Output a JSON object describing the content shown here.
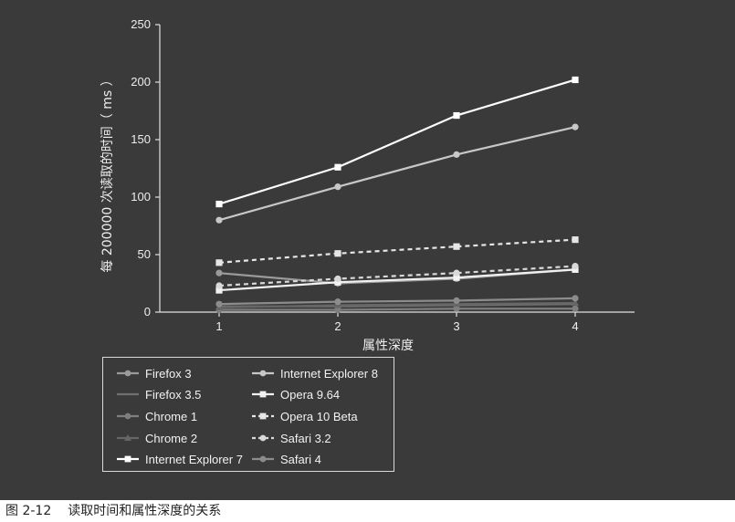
{
  "caption": {
    "number": "图 2-12",
    "text": "读取时间和属性深度的关系"
  },
  "chart_data": {
    "type": "line",
    "xlabel": "属性深度",
    "ylabel": "每 200000 次读取的时间（ ms ）",
    "x": [
      1,
      2,
      3,
      4
    ],
    "xlim": [
      0.5,
      4.5
    ],
    "ylim": [
      0,
      250
    ],
    "yticks": [
      0,
      50,
      100,
      150,
      200,
      250
    ],
    "grid": false,
    "legend_position": "bottom-left",
    "series": [
      {
        "name": "Firefox 3",
        "values": [
          34,
          25,
          29,
          37
        ],
        "color": "#9a9a9a",
        "dash": false,
        "marker": "circle"
      },
      {
        "name": "Firefox 3.5",
        "values": [
          5,
          5,
          6,
          7
        ],
        "color": "#707070",
        "dash": false,
        "marker": "none"
      },
      {
        "name": "Chrome 1",
        "values": [
          2,
          2,
          3,
          3
        ],
        "color": "#7e7e7e",
        "dash": false,
        "marker": "circle"
      },
      {
        "name": "Chrome 2",
        "values": [
          4,
          6,
          7,
          8
        ],
        "color": "#666666",
        "dash": false,
        "marker": "triangle"
      },
      {
        "name": "Internet Explorer 7",
        "values": [
          94,
          126,
          171,
          202
        ],
        "color": "#ffffff",
        "dash": false,
        "marker": "square"
      },
      {
        "name": "Internet Explorer 8",
        "values": [
          80,
          109,
          137,
          161
        ],
        "color": "#c8c8c8",
        "dash": false,
        "marker": "circle"
      },
      {
        "name": "Opera 9.64",
        "values": [
          19,
          26,
          30,
          37
        ],
        "color": "#f2f2f2",
        "dash": false,
        "marker": "square"
      },
      {
        "name": "Opera 10 Beta",
        "values": [
          43,
          51,
          57,
          63
        ],
        "color": "#e6e6e6",
        "dash": true,
        "marker": "square"
      },
      {
        "name": "Safari 3.2",
        "values": [
          23,
          29,
          34,
          40
        ],
        "color": "#d9d9d9",
        "dash": true,
        "marker": "circle"
      },
      {
        "name": "Safari 4",
        "values": [
          7,
          9,
          10,
          12
        ],
        "color": "#8c8c8c",
        "dash": false,
        "marker": "circle"
      }
    ]
  }
}
